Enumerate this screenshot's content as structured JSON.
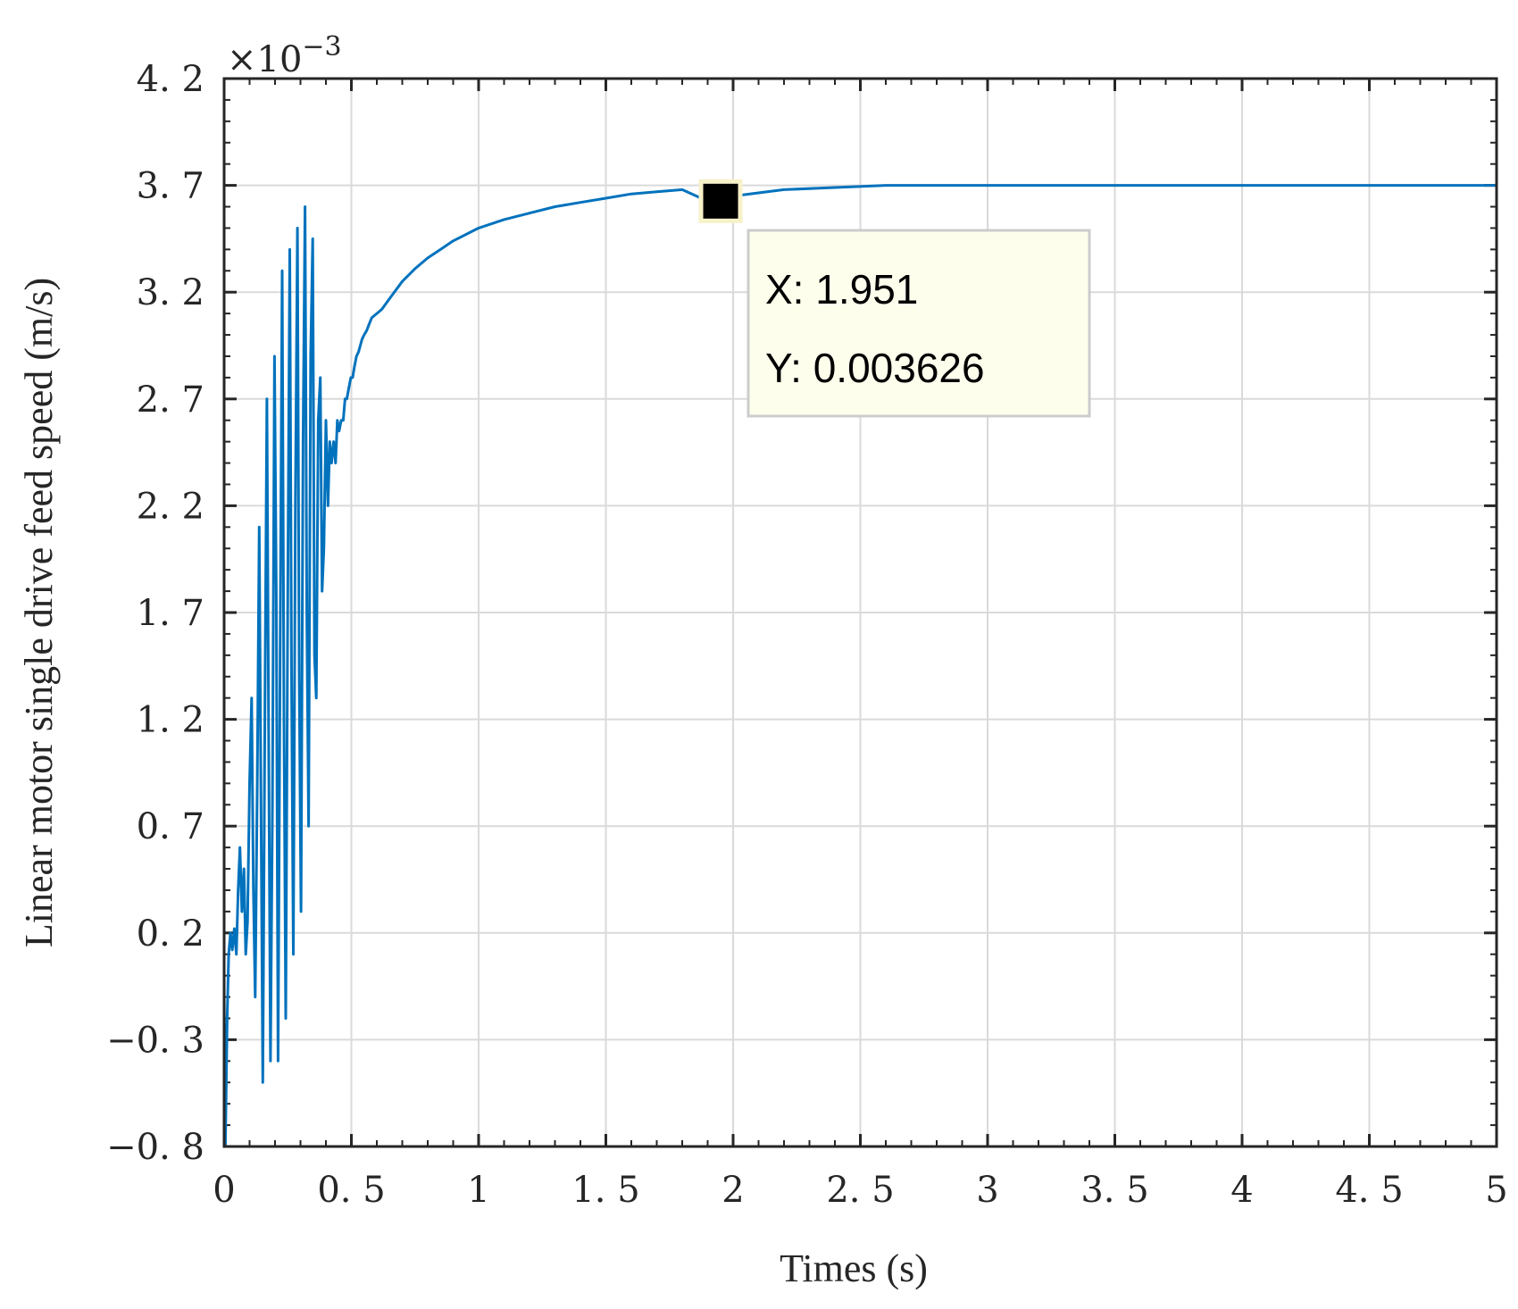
{
  "chart_data": {
    "type": "line",
    "title": "",
    "xlabel": "Times (s)",
    "ylabel": "Linear motor single drive feed speed (m/s)",
    "exponent_label": "×10",
    "exponent_power": "−3",
    "xlim": [
      0,
      5
    ],
    "ylim": [
      -0.0008,
      0.0042
    ],
    "x_ticks": [
      0,
      0.5,
      1,
      1.5,
      2,
      2.5,
      3,
      3.5,
      4,
      4.5,
      5
    ],
    "x_tick_labels": [
      "0",
      "0. 5",
      "1",
      "1. 5",
      "2",
      "2. 5",
      "3",
      "3. 5",
      "4",
      "4. 5",
      "5"
    ],
    "y_ticks": [
      -0.0008,
      -0.0003,
      0.0002,
      0.0007,
      0.0012,
      0.0017,
      0.0022,
      0.0027,
      0.0032,
      0.0037,
      0.0042
    ],
    "y_tick_labels": [
      "−0. 8",
      "−0. 3",
      "0. 2",
      "0. 7",
      "1. 2",
      "1. 7",
      "2. 2",
      "2. 7",
      "3. 2",
      "3. 7",
      "4. 2"
    ],
    "grid": true,
    "box": true,
    "series_color": "#0072bd",
    "series": [
      {
        "x": [
          0,
          0.005,
          0.012,
          0.018,
          0.025,
          0.032,
          0.04,
          0.048,
          0.055,
          0.062,
          0.07,
          0.078,
          0.085,
          0.092,
          0.1,
          0.108,
          0.115,
          0.122,
          0.13,
          0.138,
          0.145,
          0.152,
          0.16,
          0.168,
          0.175,
          0.182,
          0.19,
          0.198,
          0.205,
          0.212,
          0.22,
          0.228,
          0.235,
          0.242,
          0.25,
          0.258,
          0.265,
          0.272,
          0.28,
          0.288,
          0.295,
          0.302,
          0.31,
          0.318,
          0.325,
          0.332,
          0.34,
          0.348,
          0.355,
          0.362,
          0.37,
          0.378,
          0.385,
          0.392,
          0.4,
          0.408,
          0.415,
          0.422,
          0.43,
          0.438,
          0.445,
          0.452,
          0.46,
          0.468,
          0.475,
          0.482,
          0.49,
          0.498,
          0.505,
          0.512,
          0.52,
          0.528,
          0.535,
          0.542,
          0.55,
          0.56,
          0.57,
          0.58,
          0.6,
          0.62,
          0.65,
          0.7,
          0.75,
          0.8,
          0.85,
          0.9,
          1.0,
          1.1,
          1.2,
          1.3,
          1.4,
          1.5,
          1.6,
          1.7,
          1.8,
          1.9,
          1.951,
          2.0,
          2.2,
          2.4,
          2.6,
          2.8,
          3.0,
          3.5,
          4.0,
          4.5,
          5.0
        ],
        "y": [
          -0.0001,
          -0.0008,
          -0.0002,
          0.0001,
          0.0002,
          0.00012,
          0.00022,
          0.0001,
          0.0004,
          0.0006,
          0.0003,
          0.0005,
          0.0001,
          0.00025,
          0.0009,
          0.0013,
          0.0004,
          -0.0001,
          0.0009,
          0.0021,
          0.0008,
          -0.0005,
          0.0012,
          0.0027,
          0.0011,
          -0.0004,
          0.0008,
          0.0029,
          0.0018,
          -0.0004,
          0.0015,
          0.0033,
          0.0012,
          -0.0002,
          0.0018,
          0.0034,
          0.0014,
          0.0001,
          0.0022,
          0.0035,
          0.0014,
          0.0003,
          0.0025,
          0.0036,
          0.0017,
          0.0007,
          0.0029,
          0.00345,
          0.0015,
          0.0013,
          0.0026,
          0.0028,
          0.0018,
          0.002,
          0.0026,
          0.0022,
          0.0025,
          0.0024,
          0.0025,
          0.0024,
          0.0026,
          0.00255,
          0.0026,
          0.0026,
          0.0027,
          0.0027,
          0.00275,
          0.0028,
          0.0028,
          0.00285,
          0.0029,
          0.00292,
          0.00295,
          0.00298,
          0.003,
          0.00302,
          0.00305,
          0.00308,
          0.0031,
          0.00312,
          0.00317,
          0.00325,
          0.00331,
          0.00336,
          0.0034,
          0.00344,
          0.0035,
          0.00354,
          0.00357,
          0.0036,
          0.00362,
          0.00364,
          0.00366,
          0.00367,
          0.00368,
          0.003626,
          0.003626,
          0.00365,
          0.00368,
          0.00369,
          0.0037,
          0.0037,
          0.0037,
          0.0037,
          0.0037,
          0.0037,
          0.0037
        ]
      }
    ],
    "datatip": {
      "x_label": "X: 1.951",
      "y_label": "Y: 0.003626",
      "x": 1.951,
      "y": 0.003626
    }
  }
}
